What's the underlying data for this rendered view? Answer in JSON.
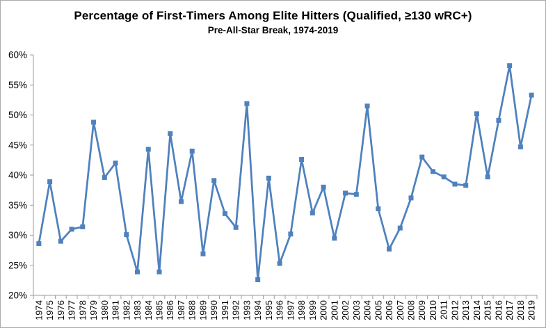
{
  "chart": {
    "title": "Percentage of First-Timers Among Elite Hitters (Qualified, ≥130 wRC+)",
    "subtitle": "Pre-All-Star Break, 1974-2019"
  },
  "chart_data": {
    "type": "line",
    "title": "Percentage of First-Timers Among Elite Hitters (Qualified, ≥130 wRC+)",
    "subtitle": "Pre-All-Star Break, 1974-2019",
    "x": [
      "1974",
      "1975",
      "1976",
      "1977",
      "1978",
      "1979",
      "1980",
      "1981",
      "1982",
      "1983",
      "1984",
      "1985",
      "1986",
      "1987",
      "1988",
      "1989",
      "1990",
      "1991",
      "1992",
      "1993",
      "1994",
      "1995",
      "1996",
      "1997",
      "1998",
      "1999",
      "2000",
      "2001",
      "2002",
      "2003",
      "2004",
      "2005",
      "2006",
      "2007",
      "2008",
      "2009",
      "2010",
      "2011",
      "2012",
      "2013",
      "2014",
      "2015",
      "2016",
      "2017",
      "2018",
      "2019"
    ],
    "values": [
      28.6,
      38.9,
      29.0,
      31.0,
      31.4,
      48.8,
      39.6,
      42.0,
      30.1,
      23.9,
      44.3,
      23.9,
      46.9,
      35.6,
      44.0,
      26.9,
      39.1,
      33.6,
      31.3,
      51.9,
      22.6,
      39.5,
      25.3,
      30.2,
      42.6,
      33.7,
      38.0,
      29.5,
      37.0,
      36.8,
      51.5,
      34.4,
      27.7,
      31.2,
      36.2,
      43.0,
      40.6,
      39.7,
      38.5,
      38.3,
      50.2,
      39.7,
      49.1,
      58.2,
      44.7,
      53.3
    ],
    "xlabel": "",
    "ylabel": "",
    "ylim": [
      20,
      60
    ],
    "ytick_step": 5,
    "ytick_labels": [
      "20%",
      "25%",
      "30%",
      "35%",
      "40%",
      "45%",
      "50%",
      "55%",
      "60%"
    ],
    "grid": false,
    "legend": false,
    "marker": "square",
    "colors": {
      "line": "#4F81BD",
      "marker": "#4F81BD",
      "axis": "#9b9b9b",
      "tick_label": "#000000",
      "title": "#000000",
      "background": "#ffffff",
      "border": "#ababab"
    }
  }
}
